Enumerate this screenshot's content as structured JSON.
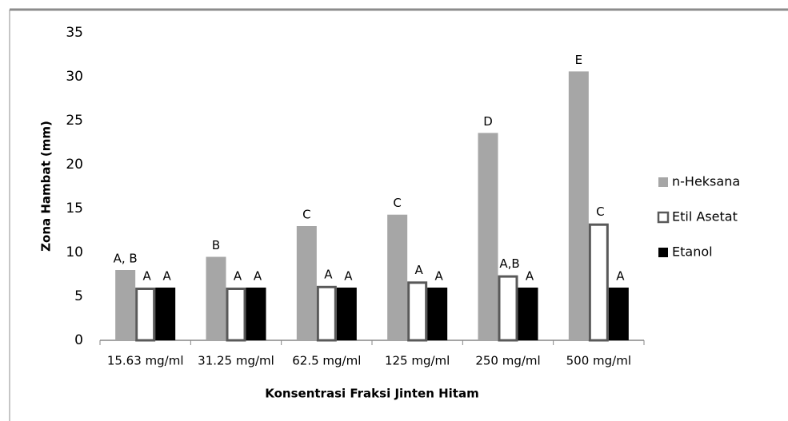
{
  "chart_data": {
    "type": "bar",
    "y_label": "Zona Hambat (mm)",
    "x_label": "Konsentrasi Fraksi Jinten Hitam",
    "categories": [
      "15.63 mg/ml",
      "31.25 mg/ml",
      "62.5 mg/ml",
      "125 mg/ml",
      "250 mg/ml",
      "500 mg/ml"
    ],
    "series": [
      {
        "name": "n-Heksana",
        "color": "#a6a6a6",
        "values": [
          8.0,
          9.5,
          13.0,
          14.3,
          23.6,
          30.6
        ],
        "annotations": [
          "A, B",
          "B",
          "C",
          "C",
          "D",
          "E"
        ]
      },
      {
        "name": "Etil Asetat",
        "color": "#ffffff",
        "values": [
          6.0,
          6.0,
          6.2,
          6.7,
          7.4,
          13.3
        ],
        "annotations": [
          "A",
          "A",
          "A",
          "A",
          "A,B",
          "C"
        ]
      },
      {
        "name": "Etanol",
        "color": "#000000",
        "values": [
          6.0,
          6.0,
          6.0,
          6.0,
          6.0,
          6.0
        ],
        "annotations": [
          "A",
          "A",
          "A",
          "A",
          "A",
          "A"
        ]
      }
    ],
    "ylim": [
      0,
      35
    ],
    "yticks": [
      0,
      5,
      10,
      15,
      20,
      25,
      30,
      35
    ],
    "grid": false,
    "legend": "right"
  }
}
